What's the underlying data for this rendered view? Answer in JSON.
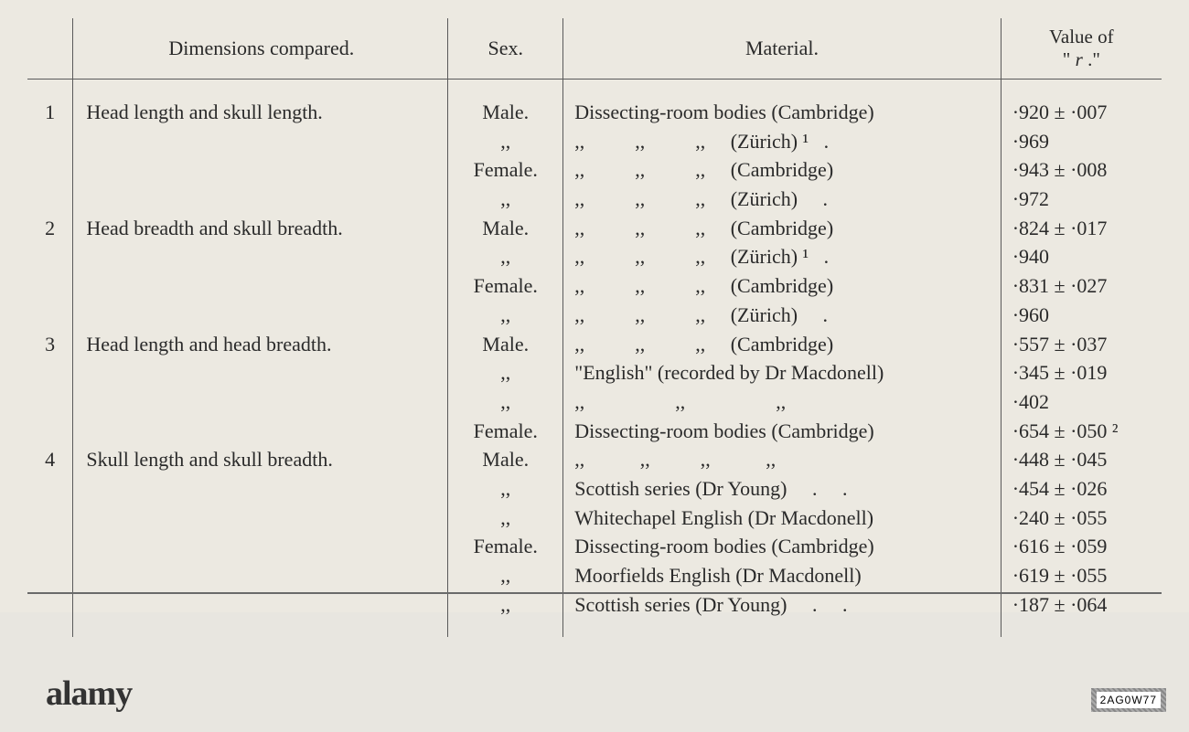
{
  "headers": {
    "dimensions": "Dimensions compared.",
    "sex": "Sex.",
    "material": "Material.",
    "value": "Value of \" r .\""
  },
  "rows": [
    {
      "num": "1",
      "dim": "Head length and skull length.",
      "sex": "Male.",
      "mat": "Dissecting-room bodies (Cambridge)",
      "val": "·920 ± ·007"
    },
    {
      "num": "",
      "dim": "",
      "sex": ",,",
      "mat": ",,          ,,          ,,     (Zürich) ¹   .",
      "val": "·969"
    },
    {
      "num": "",
      "dim": "",
      "sex": "Female.",
      "mat": ",,          ,,          ,,     (Cambridge)",
      "val": "·943 ± ·008"
    },
    {
      "num": "",
      "dim": "",
      "sex": ",,",
      "mat": ",,          ,,          ,,     (Zürich)     .",
      "val": "·972"
    },
    {
      "num": "2",
      "dim": "Head breadth and skull breadth.",
      "sex": "Male.",
      "mat": ",,          ,,          ,,     (Cambridge)",
      "val": "·824 ± ·017"
    },
    {
      "num": "",
      "dim": "",
      "sex": ",,",
      "mat": ",,          ,,          ,,     (Zürich) ¹   .",
      "val": "·940"
    },
    {
      "num": "",
      "dim": "",
      "sex": "Female.",
      "mat": ",,          ,,          ,,     (Cambridge)",
      "val": "·831 ± ·027"
    },
    {
      "num": "",
      "dim": "",
      "sex": ",,",
      "mat": ",,          ,,          ,,     (Zürich)     .",
      "val": "·960"
    },
    {
      "num": "3",
      "dim": "Head length and head breadth.",
      "sex": "Male.",
      "mat": ",,          ,,          ,,     (Cambridge)",
      "val": "·557 ± ·037"
    },
    {
      "num": "",
      "dim": "",
      "sex": ",,",
      "mat": "\"English\" (recorded by Dr Macdonell)",
      "val": "·345 ± ·019"
    },
    {
      "num": "",
      "dim": "",
      "sex": ",,",
      "mat": ",,                  ,,                  ,,",
      "val": "·402"
    },
    {
      "num": "",
      "dim": "",
      "sex": "Female.",
      "mat": "Dissecting-room bodies (Cambridge)",
      "val": "·654 ± ·050 ²"
    },
    {
      "num": "4",
      "dim": "Skull length and skull breadth.",
      "sex": "Male.",
      "mat": ",,           ,,          ,,           ,,",
      "val": "·448 ± ·045"
    },
    {
      "num": "",
      "dim": "",
      "sex": ",,",
      "mat": "Scottish series (Dr Young)     .     .",
      "val": "·454 ± ·026"
    },
    {
      "num": "",
      "dim": "",
      "sex": ",,",
      "mat": "Whitechapel English (Dr Macdonell)",
      "val": "·240 ± ·055"
    },
    {
      "num": "",
      "dim": "",
      "sex": "Female.",
      "mat": "Dissecting-room bodies (Cambridge)",
      "val": "·616 ± ·059"
    },
    {
      "num": "",
      "dim": "",
      "sex": ",,",
      "mat": "Moorfields English (Dr Macdonell)",
      "val": "·619 ± ·055"
    },
    {
      "num": "",
      "dim": "",
      "sex": ",,",
      "mat": "Scottish series (Dr Young)     .     .",
      "val": "·187 ± ·064"
    }
  ],
  "watermark": {
    "brand": "alamy",
    "id": "2AG0W77"
  },
  "colors": {
    "page_bg": "#ece9e1",
    "text": "#2a2a2a",
    "rule": "#5a5a5a"
  },
  "typography": {
    "body_fontsize": 22,
    "header_fontsize": 22
  }
}
